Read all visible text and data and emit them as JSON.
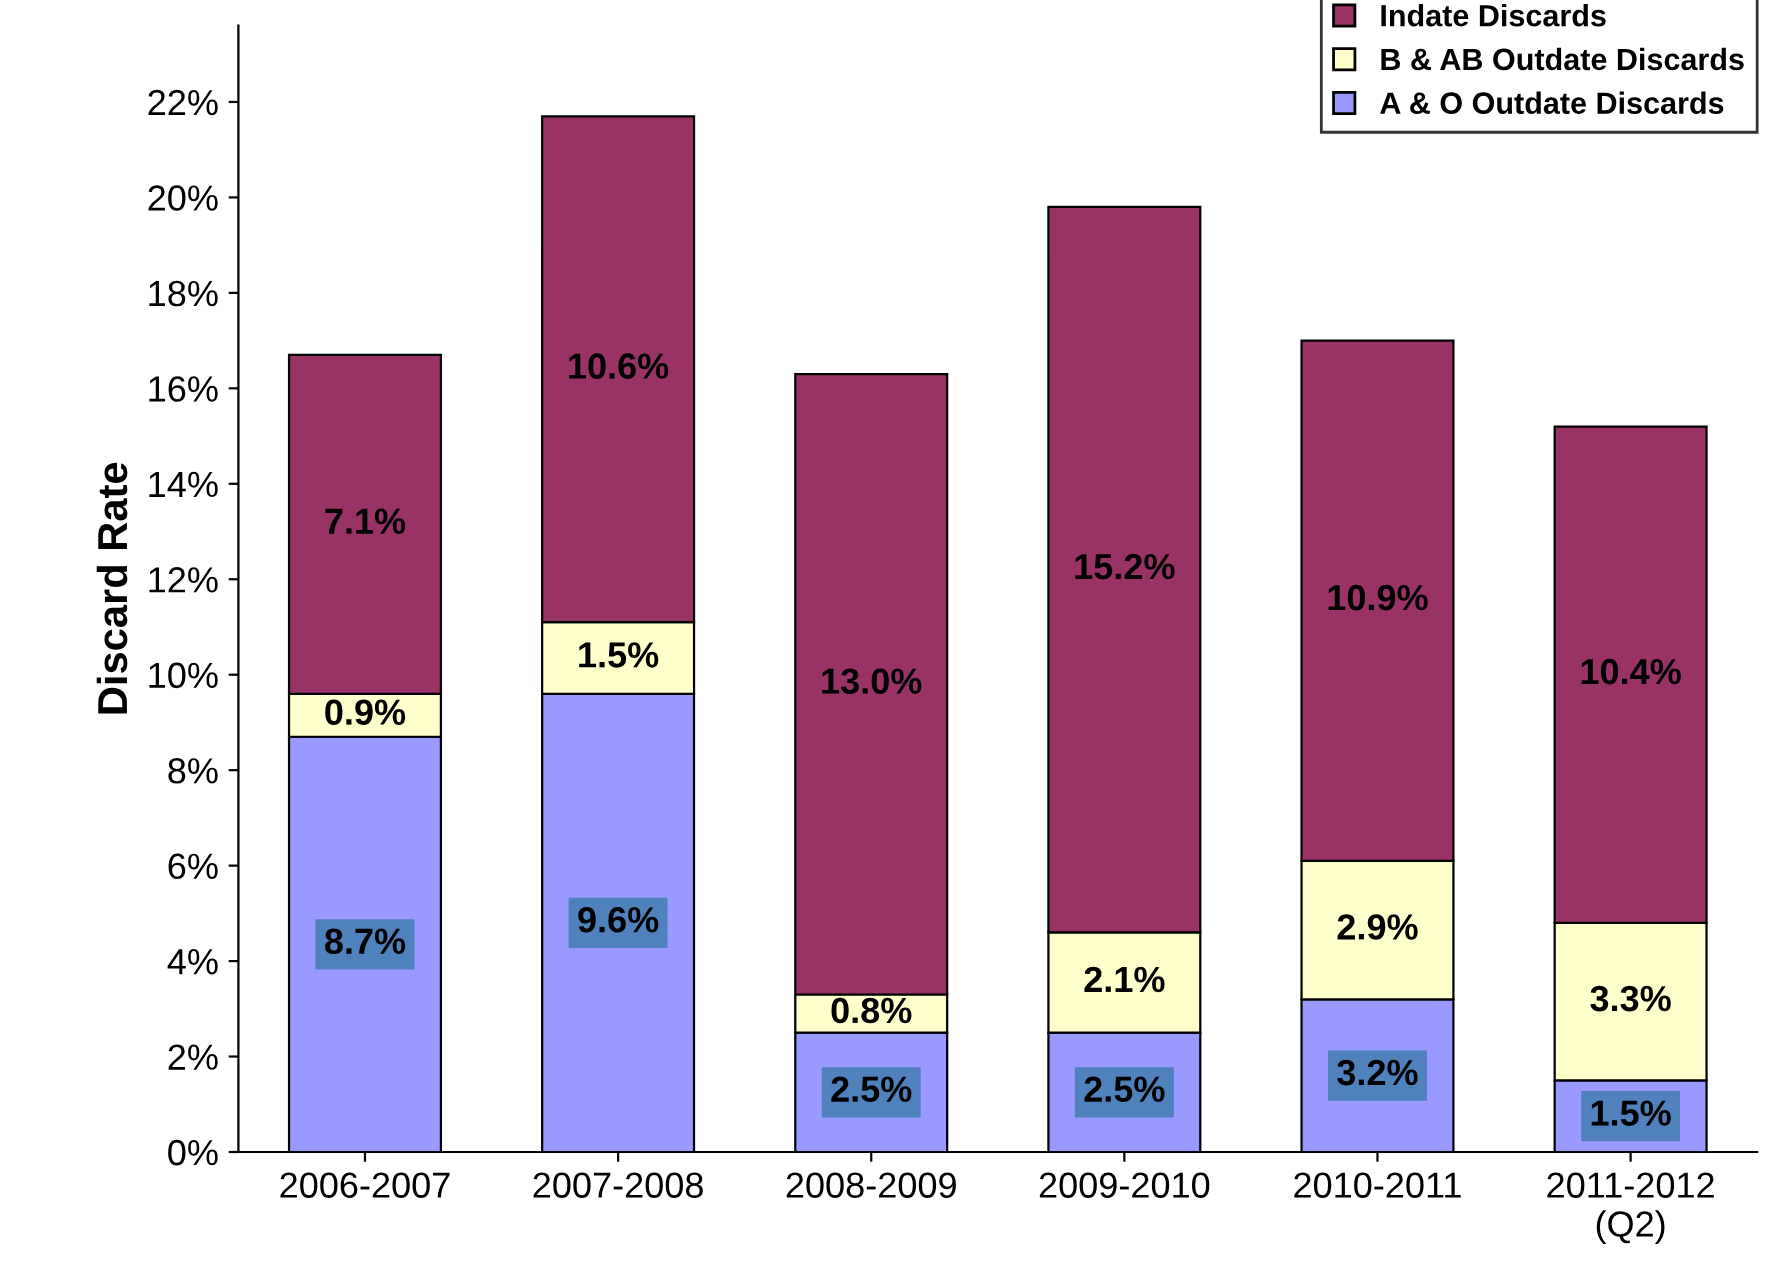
{
  "chart_data": {
    "type": "bar",
    "stacked": true,
    "ylabel": "Discard Rate",
    "categories": [
      "2006-2007",
      "2007-2008",
      "2008-2009",
      "2009-2010",
      "2010-2011",
      "2011-2012\n(Q2)"
    ],
    "series": [
      {
        "name": "A & O Outdate Discards",
        "color": "#9999ff",
        "values": [
          8.7,
          9.6,
          2.5,
          2.5,
          3.2,
          1.5
        ],
        "value_labels": [
          "8.7%",
          "9.6%",
          "2.5%",
          "2.5%",
          "3.2%",
          "1.5%"
        ]
      },
      {
        "name": "B & AB Outdate Discards",
        "color": "#ffffcc",
        "values": [
          0.9,
          1.5,
          0.8,
          2.1,
          2.9,
          3.3
        ],
        "value_labels": [
          "0.9%",
          "1.5%",
          "0.8%",
          "2.1%",
          "2.9%",
          "3.3%"
        ]
      },
      {
        "name": "Indate Discards",
        "color": "#993366",
        "values": [
          7.1,
          10.6,
          13.0,
          15.2,
          10.9,
          10.4
        ],
        "value_labels": [
          "7.1%",
          "10.6%",
          "13.0%",
          "15.2%",
          "10.9%",
          "10.4%"
        ]
      }
    ],
    "ylim": [
      0,
      23.6
    ],
    "yticks": [
      {
        "value": 0,
        "label": "0%"
      },
      {
        "value": 2,
        "label": "2%"
      },
      {
        "value": 4,
        "label": "4%"
      },
      {
        "value": 6,
        "label": "6%"
      },
      {
        "value": 8,
        "label": "8%"
      },
      {
        "value": 10,
        "label": "10%"
      },
      {
        "value": 12,
        "label": "12%"
      },
      {
        "value": 14,
        "label": "14%"
      },
      {
        "value": 16,
        "label": "16%"
      },
      {
        "value": 18,
        "label": "18%"
      },
      {
        "value": 20,
        "label": "20%"
      },
      {
        "value": 22,
        "label": "22%"
      }
    ],
    "legend": "top right",
    "grid": false
  }
}
